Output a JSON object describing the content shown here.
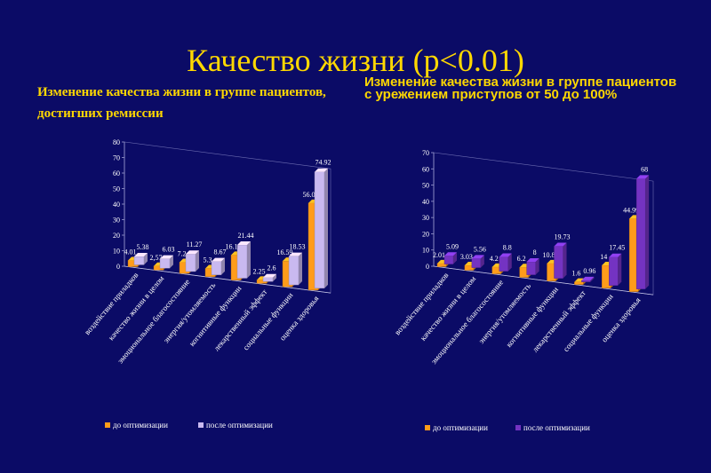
{
  "slide": {
    "title": "Качество жизни (р<0.01)"
  },
  "colors": {
    "background": "#0b0b66",
    "title": "#ffd800",
    "orange": "#ff9c1a",
    "lavender": "#c9b9f0",
    "purple": "#7433c2"
  },
  "chart_data": [
    {
      "type": "bar",
      "title": "Изменение качества жизни в группе пациентов, достигших ремиссии",
      "categories": [
        "воздействие приладков",
        "качество жизни в целом",
        "эмоциональное благосостояние",
        "энергия/утомляемость",
        "когнитивные функции",
        "лекарственный эффект",
        "социальные функции",
        "оценка здоровья"
      ],
      "series": [
        {
          "name": "до оптимизации",
          "values": [
            4.01,
            2.57,
            7.2,
            5.3,
            16.14,
            2.25,
            16.59,
            56.05
          ],
          "value_labels": [
            "4.01",
            "2,57",
            "7.2",
            "5.3",
            "16.14",
            "2.25",
            "16.59",
            "56.05"
          ]
        },
        {
          "name": "после оптимизации",
          "values": [
            5.38,
            6.03,
            11.27,
            8.67,
            21.44,
            2.6,
            18.53,
            74.92
          ],
          "value_labels": [
            "5.38",
            "6.03",
            "11.27",
            "8.67",
            "21.44",
            "2.6",
            "18.53",
            "74.92"
          ]
        }
      ],
      "y_ticks": [
        "0",
        "10",
        "20",
        "30",
        "40",
        "50",
        "60",
        "70",
        "80"
      ],
      "ylim": [
        0,
        80
      ],
      "legend": "bottom"
    },
    {
      "type": "bar",
      "title": "Изменение качества жизни в группе пациентов с урежением приступов от 50 до 100%",
      "categories": [
        "воздействие приладков",
        "качество жизни в целом",
        "эмоциональное благосостояние",
        "энергия/утомляемость",
        "когнитивные функции",
        "лекарственный эффект",
        "социальные функции",
        "оценка здоровья"
      ],
      "series": [
        {
          "name": "до оптимизации",
          "values": [
            2.01,
            3.03,
            4.2,
            6.2,
            10.8,
            1.6,
            14,
            44.99
          ],
          "value_labels": [
            "2.01",
            "3.03",
            "4.2",
            "6.2",
            "10.8",
            "1.6",
            "14",
            "44.99"
          ]
        },
        {
          "name": "после оптимизации",
          "values": [
            5.09,
            5.56,
            8.8,
            8,
            19.73,
            0.96,
            17.45,
            68
          ],
          "value_labels": [
            "5.09",
            "5.56",
            "8.8",
            "8",
            "19.73",
            "0.96",
            "17.45",
            "68"
          ]
        }
      ],
      "y_ticks": [
        "0",
        "10",
        "20",
        "30",
        "40",
        "50",
        "60",
        "70"
      ],
      "ylim": [
        0,
        70
      ],
      "legend": "bottom"
    }
  ]
}
